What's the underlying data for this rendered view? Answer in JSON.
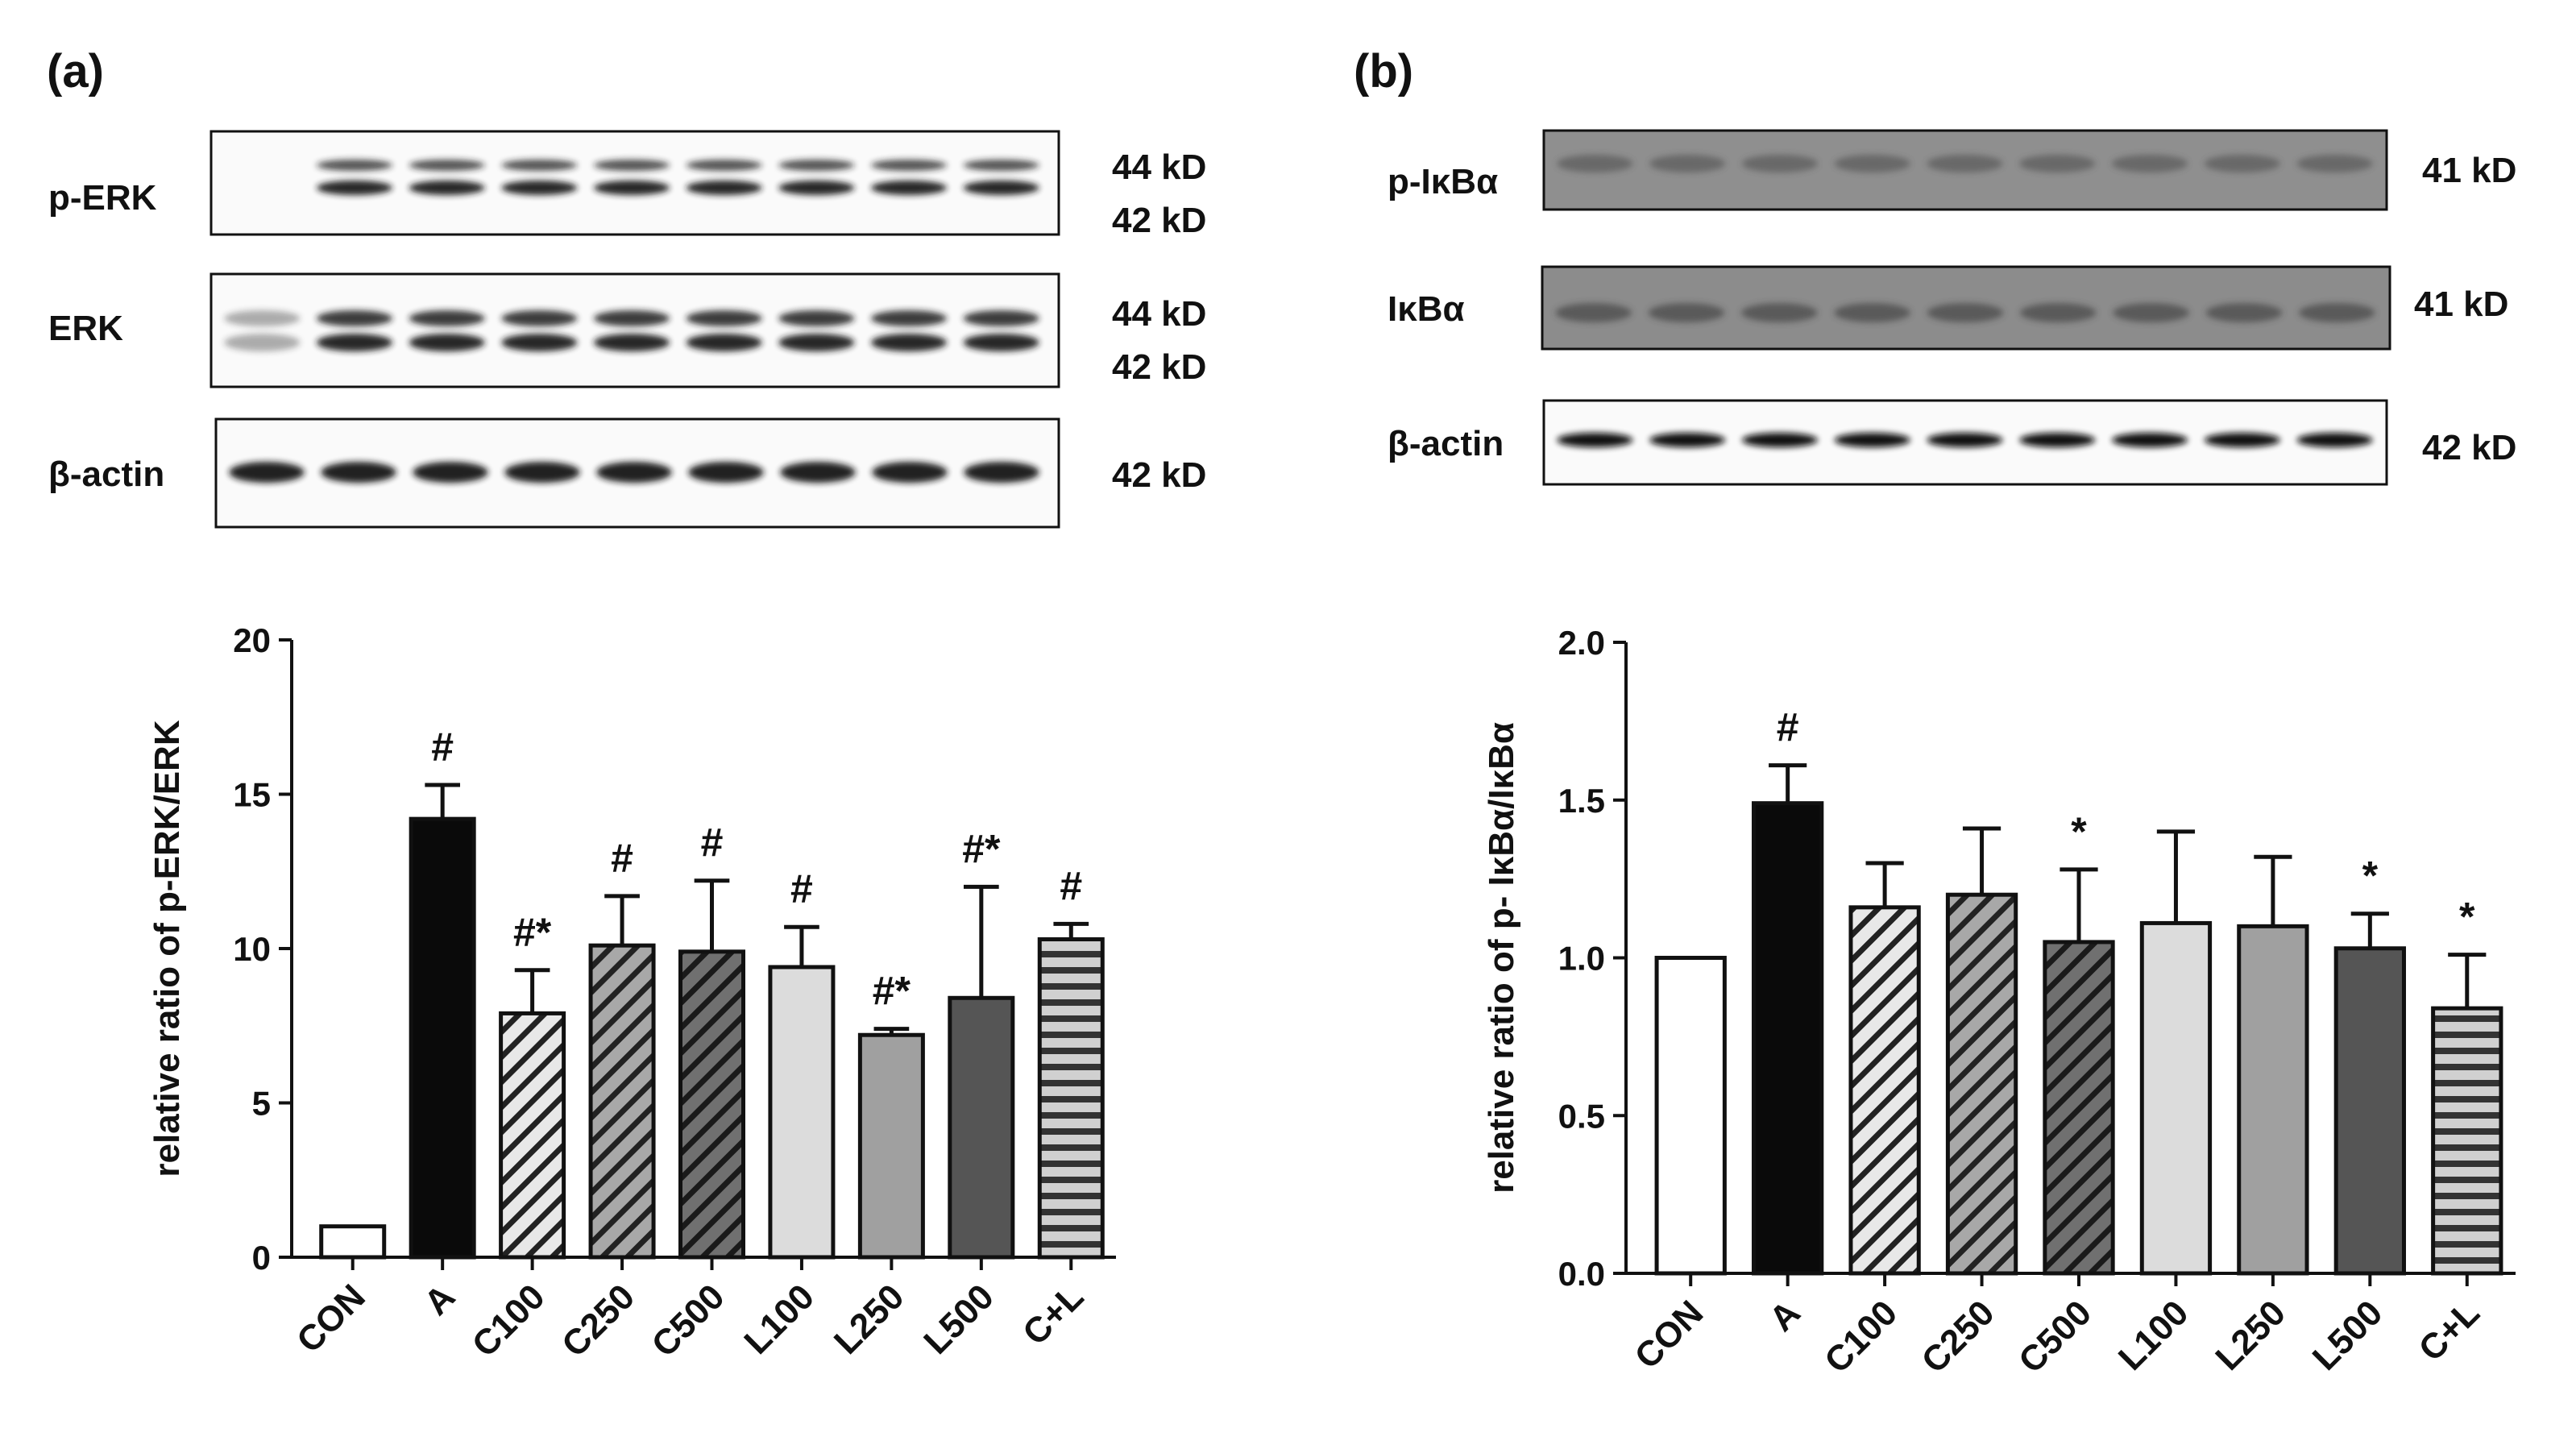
{
  "panels": [
    {
      "label": "(a)",
      "blot_rows": [
        {
          "name": "p-ERK",
          "sizes": [
            "44 kD",
            "42 kD"
          ]
        },
        {
          "name": "ERK",
          "sizes": [
            "44 kD",
            "42 kD"
          ]
        },
        {
          "name": "β-actin",
          "sizes": [
            "42 kD"
          ]
        }
      ]
    },
    {
      "label": "(b)",
      "blot_rows": [
        {
          "name": "p-IκBα",
          "sizes": [
            "41 kD"
          ]
        },
        {
          "name": "IκBα",
          "sizes": [
            "41 kD"
          ]
        },
        {
          "name": "β-actin",
          "sizes": [
            "42 kD"
          ]
        }
      ]
    }
  ],
  "chart_data": [
    {
      "type": "bar",
      "title": "",
      "xlabel": "",
      "ylabel": "relative ratio of p-ERK/ERK",
      "categories": [
        "CON",
        "A",
        "C100",
        "C250",
        "C500",
        "L100",
        "L250",
        "L500",
        "C+L"
      ],
      "values": [
        1.0,
        14.2,
        7.9,
        10.1,
        9.9,
        9.4,
        7.2,
        8.4,
        10.3
      ],
      "errors": [
        0,
        1.1,
        1.4,
        1.6,
        2.3,
        1.3,
        0.2,
        3.6,
        0.5
      ],
      "annotations": [
        "",
        "#",
        "#*",
        "#",
        "#",
        "#",
        "#*",
        "#*",
        "#"
      ],
      "ylim": [
        0,
        20
      ],
      "yticks": [
        "0",
        "5",
        "10",
        "15",
        "20"
      ],
      "patterns": [
        "white",
        "black",
        "diag-light",
        "diag-mid",
        "diag-dark",
        "light-gray",
        "mid-gray",
        "dark-gray",
        "horizontal"
      ]
    },
    {
      "type": "bar",
      "title": "",
      "xlabel": "",
      "ylabel": "relative ratio of p- IκBα/IκBα",
      "categories": [
        "CON",
        "A",
        "C100",
        "C250",
        "C500",
        "L100",
        "L250",
        "L500",
        "C+L"
      ],
      "values": [
        1.0,
        1.49,
        1.16,
        1.2,
        1.05,
        1.11,
        1.1,
        1.03,
        0.84
      ],
      "errors": [
        0,
        0.12,
        0.14,
        0.21,
        0.23,
        0.29,
        0.22,
        0.11,
        0.17
      ],
      "annotations": [
        "",
        "#",
        "",
        "",
        "*",
        "",
        "",
        "*",
        "*"
      ],
      "ylim": [
        0,
        2.0
      ],
      "yticks": [
        "0.0",
        "0.5",
        "1.0",
        "1.5",
        "2.0"
      ],
      "patterns": [
        "white",
        "black",
        "diag-light",
        "diag-mid",
        "diag-dark",
        "light-gray",
        "mid-gray",
        "dark-gray",
        "horizontal"
      ]
    }
  ]
}
